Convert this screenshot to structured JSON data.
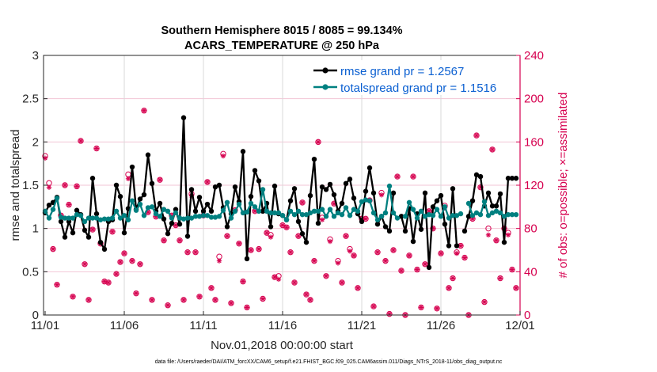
{
  "chart_data": {
    "type": "line",
    "title_line1": "Southern Hemisphere 8015 / 8085 = 99.134%",
    "title_line2": "ACARS_TEMPERATURE @ 250 hPa",
    "xlabel": "Nov.01,2018 00:00:00 start",
    "ylabel_left": "rmse and totalspread",
    "ylabel_right": "# of obs: o=possible; ×=assimilated",
    "x_start": "2018-11-01 00:00",
    "x_interval_hours": 6,
    "x_ticks": [
      "11/01",
      "11/06",
      "11/11",
      "11/16",
      "11/21",
      "11/26",
      "12/01"
    ],
    "ylim_left": [
      0,
      3
    ],
    "yticks_left": [
      "0",
      "0.5",
      "1",
      "1.5",
      "2",
      "2.5",
      "3"
    ],
    "ylim_right": [
      0,
      240
    ],
    "yticks_right": [
      "0",
      "40",
      "80",
      "120",
      "160",
      "200",
      "240"
    ],
    "grid": true,
    "legend_position": "top-right",
    "colors": {
      "rmse": "#000000",
      "totalspread": "#008080",
      "obs": "#d6004f",
      "grid_h": "#f2c6d6",
      "grid_v": "#d9d9d9"
    },
    "series": [
      {
        "name": "rmse grand pr = 1.2567",
        "values": [
          1.18,
          1.27,
          1.3,
          1.36,
          1.08,
          0.9,
          1.08,
          0.95,
          1.21,
          1.16,
          0.98,
          0.9,
          1.58,
          1.17,
          0.84,
          0.76,
          1.08,
          1.1,
          1.5,
          1.37,
          0.95,
          1.23,
          1.71,
          1.22,
          1.34,
          1.39,
          1.85,
          1.52,
          1.2,
          1.29,
          1.11,
          0.94,
          1.06,
          1.22,
          1.05,
          2.28,
          0.91,
          1.45,
          1.2,
          1.36,
          1.2,
          1.28,
          1.2,
          1.48,
          1.5,
          1.24,
          1.02,
          1.17,
          1.48,
          1.31,
          1.89,
          0.65,
          1.37,
          1.67,
          1.55,
          1.2,
          1.29,
          1.02,
          1.49,
          1.17,
          1.15,
          1.1,
          1.32,
          1.46,
          1.08,
          0.94,
          0.84,
          1.38,
          1.8,
          1.06,
          1.48,
          1.45,
          1.51,
          1.39,
          1.2,
          1.29,
          1.52,
          1.57,
          1.35,
          1.17,
          1.08,
          1.43,
          1.7,
          1.41,
          1.05,
          1.14,
          1.02,
          0.97,
          1.41,
          null,
          1.14,
          0.97,
          1.23,
          0.85,
          1.17,
          0.99,
          1.41,
          0.55,
          1.25,
          1.32,
          1.38,
          1.05,
          0.8,
          1.46,
          0.8,
          null,
          0.97,
          1.14,
          1.32,
          1.62,
          1.6,
          1.26,
          1.41,
          1.26,
          1.26,
          1.4,
          0.84,
          1.58,
          1.58,
          1.58
        ]
      },
      {
        "name": "totalspread grand pr = 1.1516",
        "values": [
          1.2,
          1.12,
          1.22,
          1.35,
          1.13,
          1.12,
          1.12,
          1.12,
          1.16,
          1.15,
          1.08,
          1.12,
          1.12,
          1.12,
          1.1,
          1.11,
          1.11,
          1.12,
          1.2,
          1.12,
          1.15,
          1.1,
          1.32,
          1.21,
          1.28,
          1.15,
          1.24,
          1.25,
          1.17,
          1.14,
          1.22,
          1.2,
          1.12,
          1.18,
          1.12,
          1.11,
          1.12,
          1.12,
          1.14,
          1.14,
          1.15,
          1.15,
          1.13,
          1.13,
          1.14,
          1.21,
          1.3,
          1.12,
          1.2,
          1.28,
          1.18,
          1.19,
          1.29,
          1.25,
          1.2,
          1.45,
          1.2,
          1.18,
          1.18,
          1.18,
          1.15,
          1.1,
          1.2,
          1.16,
          1.2,
          1.16,
          1.16,
          1.18,
          1.2,
          1.2,
          1.22,
          1.14,
          1.22,
          1.14,
          1.18,
          1.16,
          1.24,
          1.15,
          1.22,
          1.2,
          1.31,
          1.33,
          1.32,
          1.18,
          1.1,
          1.14,
          1.18,
          1.49,
          1.18,
          1.12,
          null,
          1.14,
          1.3,
          1.22,
          1.12,
          1.2,
          1.14,
          1.16,
          1.15,
          1.22,
          1.14,
          1.25,
          1.12,
          1.15,
          1.15,
          1.17,
          null,
          1.29,
          1.15,
          1.18,
          1.16,
          1.31,
          1.15,
          1.18,
          1.2,
          1.18,
          1.14,
          1.16,
          1.16,
          1.16
        ]
      },
      {
        "name": "obs possible",
        "axis": "right",
        "values": [
          147,
          122,
          61,
          28,
          92,
          120,
          102,
          17,
          119,
          161,
          47,
          14,
          79,
          154,
          66,
          31,
          30,
          77,
          38,
          49,
          57,
          130,
          50,
          20,
          47,
          189,
          95,
          14,
          91,
          125,
          69,
          9,
          92,
          83,
          69,
          14,
          58,
          112,
          58,
          17,
          92,
          123,
          25,
          14,
          54,
          149,
          73,
          11,
          97,
          66,
          31,
          7,
          60,
          96,
          61,
          15,
          76,
          74,
          35,
          36,
          83,
          81,
          58,
          30,
          73,
          104,
          19,
          14,
          50,
          160,
          90,
          36,
          70,
          103,
          50,
          30,
          73,
          61,
          55,
          25,
          89,
          89,
          106,
          8,
          58,
          113,
          50,
          1,
          60,
          128,
          41,
          0,
          55,
          128,
          42,
          7,
          47,
          96,
          80,
          6,
          57,
          101,
          25,
          34,
          58,
          64,
          53,
          0,
          89,
          166,
          118,
          12,
          80,
          153,
          69,
          34,
          80,
          76,
          42,
          25
        ]
      },
      {
        "name": "obs assimilated",
        "axis": "right",
        "values": [
          145,
          118,
          61,
          28,
          92,
          120,
          102,
          17,
          119,
          161,
          47,
          14,
          79,
          154,
          66,
          31,
          30,
          77,
          38,
          49,
          57,
          126,
          50,
          20,
          47,
          189,
          95,
          14,
          91,
          125,
          69,
          9,
          92,
          83,
          69,
          14,
          58,
          110,
          58,
          17,
          92,
          123,
          25,
          14,
          50,
          147,
          73,
          11,
          97,
          66,
          31,
          7,
          60,
          96,
          61,
          15,
          76,
          72,
          35,
          33,
          83,
          81,
          58,
          30,
          73,
          104,
          19,
          14,
          50,
          160,
          88,
          36,
          68,
          103,
          48,
          30,
          73,
          59,
          55,
          25,
          89,
          89,
          106,
          8,
          58,
          111,
          50,
          1,
          60,
          128,
          41,
          0,
          55,
          128,
          42,
          7,
          47,
          96,
          80,
          6,
          57,
          99,
          25,
          34,
          57,
          64,
          53,
          0,
          89,
          166,
          118,
          12,
          74,
          153,
          69,
          34,
          80,
          74,
          42,
          25
        ]
      }
    ],
    "legend": [
      "rmse grand pr = 1.2567",
      "totalspread grand pr = 1.1516"
    ]
  },
  "footer": "data file: /Users/raeder/DAI/ATM_forcXX/CAM6_setup/f.e21.FHIST_BGC.f09_025.CAM6assim.011/Diags_NTrS_2018-11/obs_diag_output.nc"
}
